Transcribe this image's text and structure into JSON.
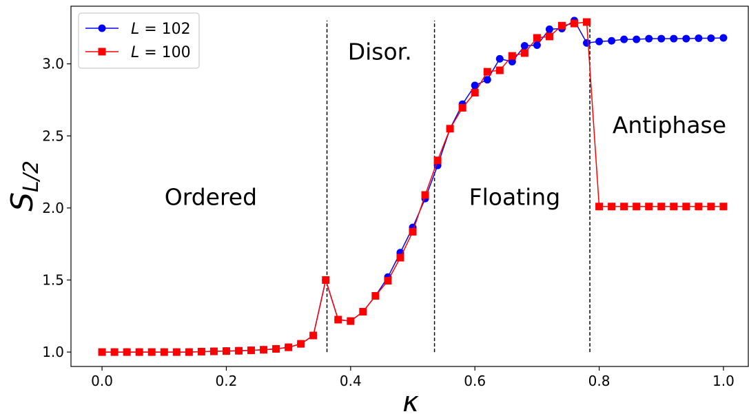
{
  "chart_data": {
    "type": "line",
    "xlabel": "κ",
    "ylabel_main": "S",
    "ylabel_sub": "L/2",
    "xlim": [
      -0.05,
      1.04
    ],
    "ylim": [
      0.9,
      3.4
    ],
    "xticks": [
      0.0,
      0.2,
      0.4,
      0.6,
      0.8,
      1.0
    ],
    "xtick_labels": [
      "0.0",
      "0.2",
      "0.4",
      "0.6",
      "0.8",
      "1.0"
    ],
    "yticks": [
      1.0,
      1.5,
      2.0,
      2.5,
      3.0
    ],
    "ytick_labels": [
      "1.0",
      "1.5",
      "2.0",
      "2.5",
      "3.0"
    ],
    "legend_position": "top-left",
    "vlines": [
      {
        "x": 0.362,
        "y_range": [
          1.0,
          3.3
        ]
      },
      {
        "x": 0.535,
        "y_range": [
          1.0,
          3.3
        ]
      },
      {
        "x": 0.785,
        "y_range": [
          1.0,
          3.3
        ]
      }
    ],
    "annotations": [
      {
        "text": "Ordered",
        "x": 0.175,
        "y": 2.02
      },
      {
        "text": "Disor.",
        "x": 0.447,
        "y": 3.03
      },
      {
        "text": "Floating",
        "x": 0.664,
        "y": 2.02
      },
      {
        "text": "Antiphase",
        "x": 0.913,
        "y": 2.52
      }
    ],
    "series": [
      {
        "name": "L = 102",
        "legend_main": "L",
        "legend_value": " = 102",
        "color": "#0000ff",
        "marker": "circle",
        "x": [
          0.0,
          0.02,
          0.04,
          0.06,
          0.08,
          0.1,
          0.12,
          0.14,
          0.16,
          0.18,
          0.2,
          0.22,
          0.24,
          0.26,
          0.28,
          0.3,
          0.32,
          0.34,
          0.36,
          0.38,
          0.4,
          0.42,
          0.44,
          0.46,
          0.48,
          0.5,
          0.52,
          0.54,
          0.56,
          0.58,
          0.6,
          0.62,
          0.64,
          0.66,
          0.68,
          0.7,
          0.72,
          0.74,
          0.76,
          0.78,
          0.8,
          0.82,
          0.84,
          0.86,
          0.88,
          0.9,
          0.92,
          0.94,
          0.96,
          0.98,
          1.0
        ],
        "y": [
          1.0,
          1.0,
          1.0,
          1.0,
          1.0,
          1.0,
          1.0,
          1.0,
          1.003,
          1.005,
          1.007,
          1.009,
          1.012,
          1.016,
          1.022,
          1.033,
          1.057,
          1.115,
          1.5,
          1.225,
          1.215,
          1.28,
          1.39,
          1.52,
          1.69,
          1.865,
          2.065,
          2.295,
          2.55,
          2.72,
          2.85,
          2.89,
          3.035,
          3.015,
          3.125,
          3.13,
          3.24,
          3.245,
          3.3,
          3.145,
          3.155,
          3.16,
          3.17,
          3.17,
          3.175,
          3.175,
          3.175,
          3.175,
          3.178,
          3.178,
          3.18
        ]
      },
      {
        "name": "L = 100",
        "legend_main": "L",
        "legend_value": " = 100",
        "color": "#ff0000",
        "marker": "square",
        "x": [
          0.0,
          0.02,
          0.04,
          0.06,
          0.08,
          0.1,
          0.12,
          0.14,
          0.16,
          0.18,
          0.2,
          0.22,
          0.24,
          0.26,
          0.28,
          0.3,
          0.32,
          0.34,
          0.36,
          0.38,
          0.4,
          0.42,
          0.44,
          0.46,
          0.48,
          0.5,
          0.52,
          0.54,
          0.56,
          0.58,
          0.6,
          0.62,
          0.64,
          0.66,
          0.68,
          0.7,
          0.72,
          0.74,
          0.76,
          0.78,
          0.8,
          0.82,
          0.84,
          0.86,
          0.88,
          0.9,
          0.92,
          0.94,
          0.96,
          0.98,
          1.0
        ],
        "y": [
          1.0,
          1.0,
          1.0,
          1.0,
          1.0,
          1.0,
          1.0,
          1.0,
          1.003,
          1.005,
          1.007,
          1.009,
          1.012,
          1.016,
          1.022,
          1.033,
          1.057,
          1.115,
          1.5,
          1.225,
          1.215,
          1.28,
          1.39,
          1.495,
          1.655,
          1.835,
          2.09,
          2.33,
          2.55,
          2.695,
          2.8,
          2.945,
          2.955,
          3.055,
          3.075,
          3.18,
          3.19,
          3.265,
          3.28,
          3.29,
          2.01,
          2.01,
          2.01,
          2.01,
          2.01,
          2.01,
          2.01,
          2.01,
          2.01,
          2.01,
          2.01
        ]
      }
    ]
  }
}
